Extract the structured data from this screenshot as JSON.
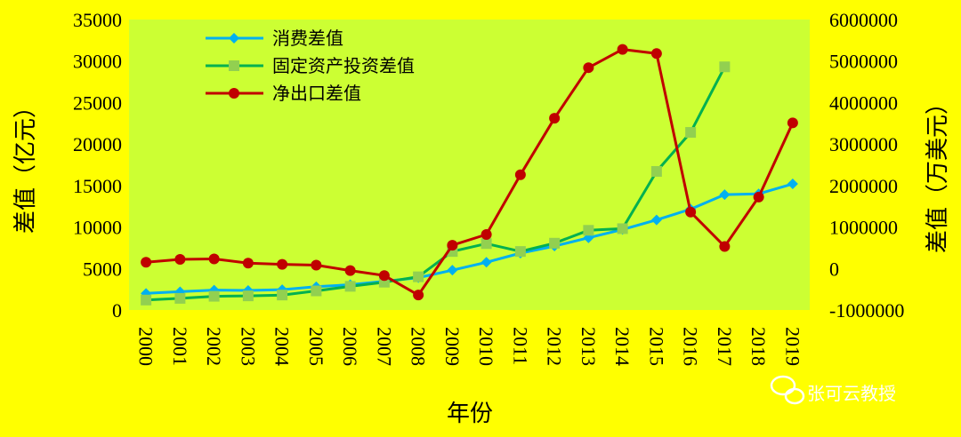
{
  "chart_data": {
    "type": "line",
    "xlabel": "年份",
    "ylabel": "差值（亿元）",
    "y2label": "差值（万美元）",
    "ylim": [
      0,
      35000
    ],
    "y2lim": [
      -1000000,
      6000000
    ],
    "categories": [
      "2000",
      "2001",
      "2002",
      "2003",
      "2004",
      "2005",
      "2006",
      "2007",
      "2008",
      "2009",
      "2010",
      "2011",
      "2012",
      "2013",
      "2014",
      "2015",
      "2016",
      "2017",
      "2018",
      "2019"
    ],
    "yticks": [
      "0",
      "5000",
      "10000",
      "15000",
      "20000",
      "25000",
      "30000",
      "35000"
    ],
    "y2ticks": [
      "-1000000",
      "0",
      "1000000",
      "2000000",
      "3000000",
      "4000000",
      "5000000",
      "6000000"
    ],
    "grid": false,
    "legend_position": "top-left",
    "series": [
      {
        "name": "消费差值",
        "axis": "left",
        "color": "#00B0F0",
        "marker": "diamond",
        "values": [
          2000,
          2200,
          2400,
          2350,
          2450,
          2800,
          3050,
          3450,
          3900,
          4800,
          5750,
          6850,
          7700,
          8700,
          9700,
          10850,
          12150,
          13900,
          14000,
          15200
        ]
      },
      {
        "name": "固定资产投资差值",
        "axis": "left",
        "color": "#00B050",
        "marker_color": "#92D050",
        "marker": "square",
        "values": [
          1200,
          1400,
          1650,
          1700,
          1800,
          2300,
          2850,
          3350,
          4000,
          7050,
          8000,
          7050,
          8050,
          9600,
          9800,
          16700,
          21400,
          29300,
          null,
          null
        ]
      },
      {
        "name": "净出口差值",
        "axis": "right",
        "color": "#C00000",
        "marker": "circle",
        "values": [
          150000,
          220000,
          230000,
          130000,
          100000,
          80000,
          -50000,
          -170000,
          -640000,
          560000,
          820000,
          2260000,
          3620000,
          4840000,
          5280000,
          5180000,
          1360000,
          530000,
          1720000,
          3510000
        ]
      }
    ]
  },
  "watermark": {
    "text": "张可云教授",
    "icon": "wechat-icon"
  }
}
